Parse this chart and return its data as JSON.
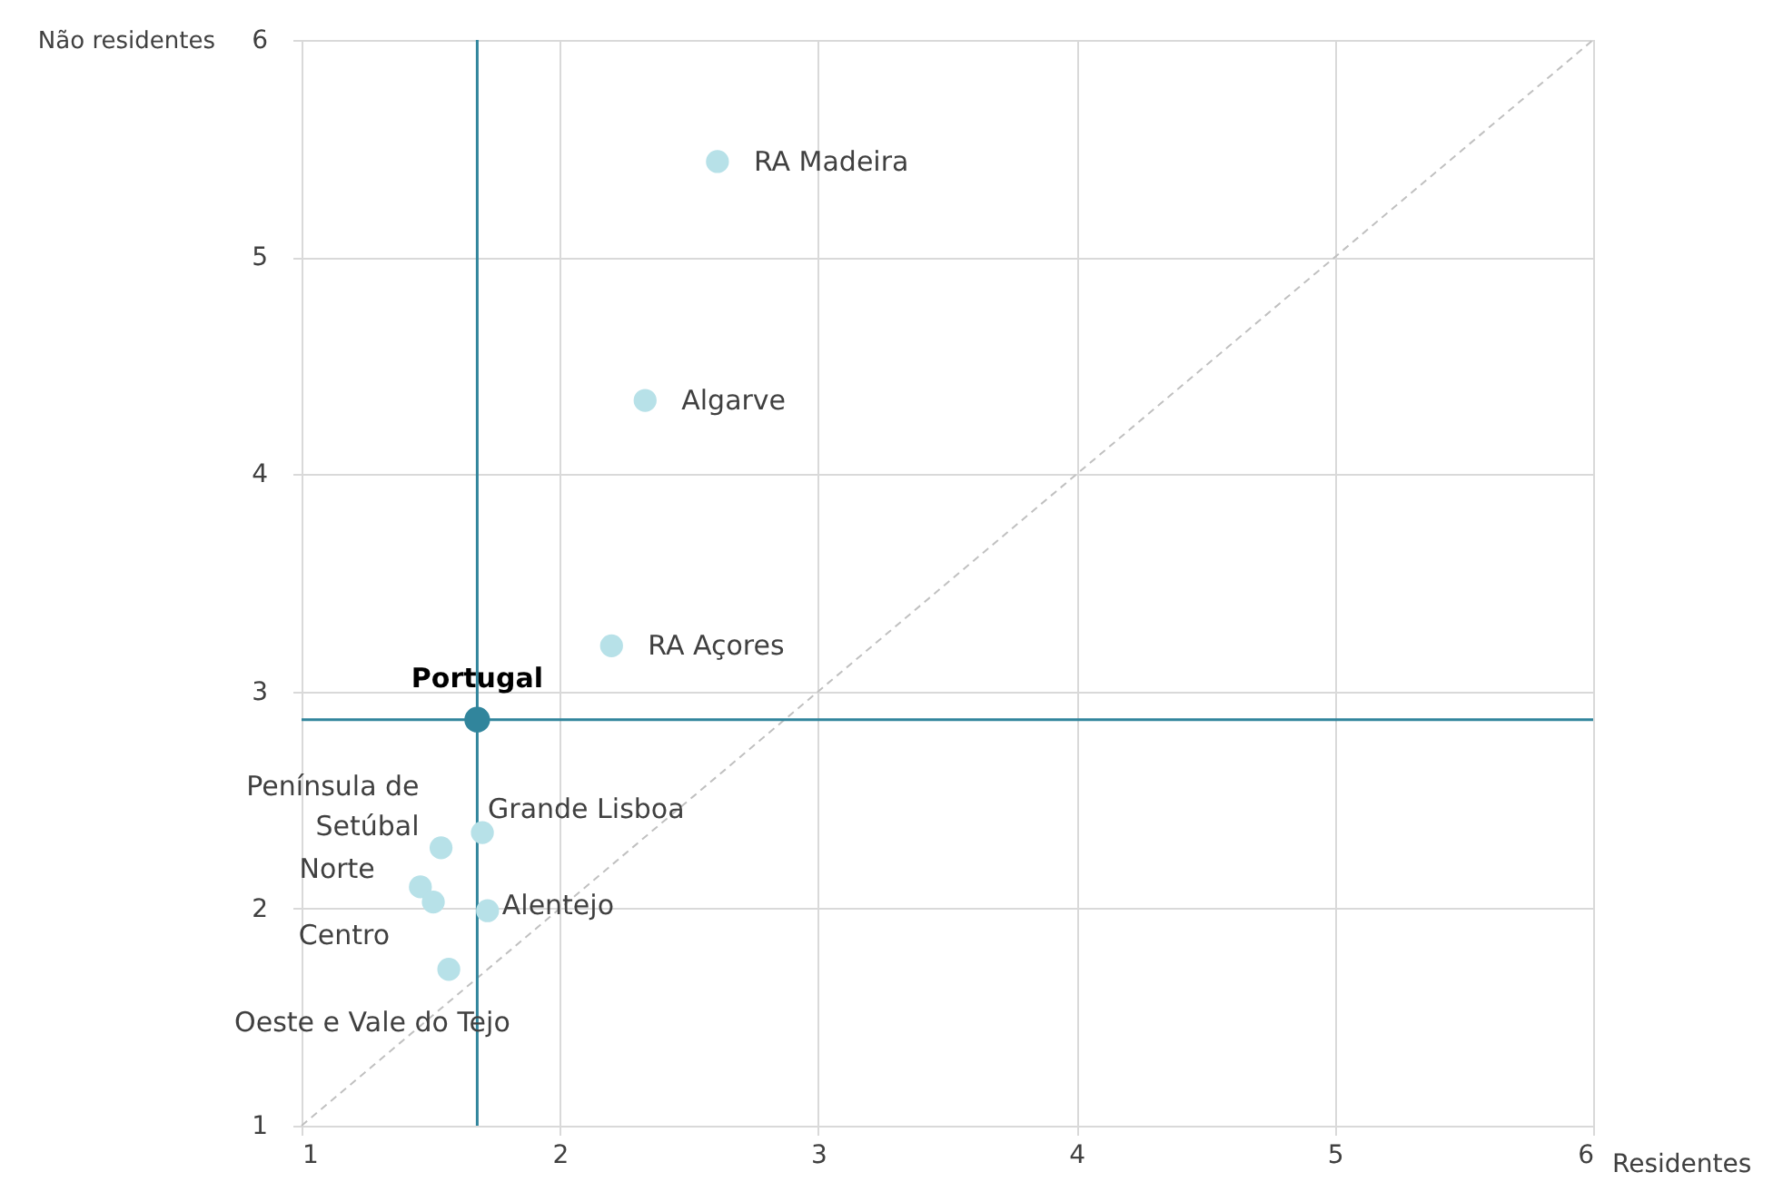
{
  "chart_data": {
    "type": "scatter",
    "xlabel": "Residentes",
    "ylabel": "Não residentes",
    "xlim": [
      1,
      6
    ],
    "ylim": [
      1,
      6
    ],
    "xticks": [
      1,
      2,
      3,
      4,
      5,
      6
    ],
    "yticks": [
      1,
      2,
      3,
      4,
      5,
      6
    ],
    "grid": true,
    "series": [
      {
        "type": "line",
        "color": "#c0c0c0",
        "line_style": "dashed",
        "marker": "none",
        "x": [
          1,
          6
        ],
        "values": [
          1,
          6
        ]
      },
      {
        "type": "scatter",
        "color": "#b7e1e8",
        "marker": "circle",
        "x": [
          2.61,
          2.33,
          2.2,
          1.7,
          1.54,
          1.46,
          1.51,
          1.72,
          1.57
        ],
        "values": [
          5.44,
          4.34,
          3.21,
          2.35,
          2.28,
          2.1,
          2.03,
          1.99,
          1.72
        ]
      },
      {
        "type": "scatter",
        "name": "Portugal",
        "color": "#31859c",
        "marker": "circle",
        "x": [
          1.68
        ],
        "values": [
          2.87
        ]
      }
    ],
    "ref_lines": [
      {
        "axis": "x",
        "value": 1.68,
        "color": "#31859c"
      },
      {
        "axis": "y",
        "value": 2.87,
        "color": "#31859c"
      }
    ],
    "annotations": [
      {
        "text": "RA Madeira",
        "x": 2.61,
        "y": 5.44
      },
      {
        "text": "Algarve",
        "x": 2.33,
        "y": 4.34
      },
      {
        "text": "RA Açores",
        "x": 2.2,
        "y": 3.21
      },
      {
        "text": "Grande Lisboa",
        "x": 1.7,
        "y": 2.35
      },
      {
        "text": "Península de\nSetúbal",
        "x": 1.54,
        "y": 2.28
      },
      {
        "text": "Norte",
        "x": 1.46,
        "y": 2.1
      },
      {
        "text": "Centro",
        "x": 1.51,
        "y": 2.03
      },
      {
        "text": "Alentejo",
        "x": 1.72,
        "y": 1.99
      },
      {
        "text": "Oeste e Vale do  Tejo",
        "x": 1.57,
        "y": 1.72
      }
    ]
  }
}
